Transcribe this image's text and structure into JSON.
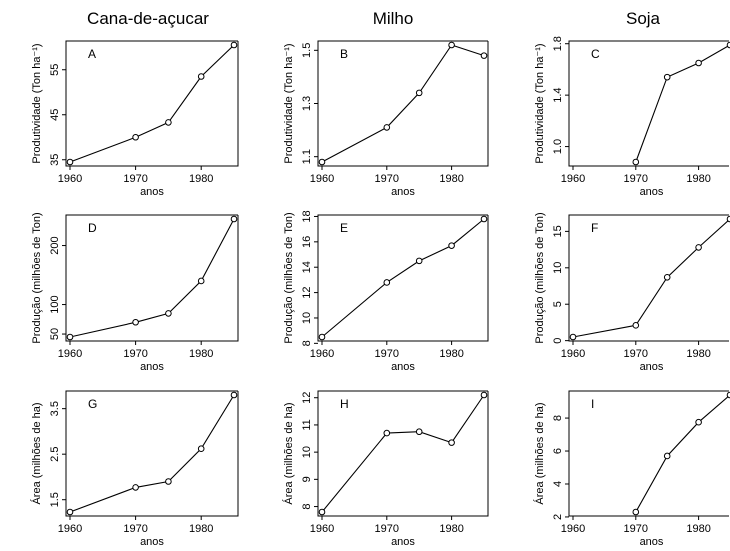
{
  "column_titles": [
    "Cana-de-açucar",
    "Milho",
    "Soja"
  ],
  "chart_data": [
    {
      "type": "line",
      "panel": "A",
      "title": "",
      "xlabel": "anos",
      "ylabel": "Produtividade (Ton ha⁻¹)",
      "x": [
        1960,
        1970,
        1975,
        1980,
        1985
      ],
      "y": [
        34.5,
        40,
        43.3,
        53.5,
        60.5
      ],
      "xlim": [
        1960,
        1985
      ],
      "ylim": [
        34.5,
        60.5
      ],
      "xticks": [
        "1960",
        "1970",
        "1980"
      ],
      "yticks": [
        "35",
        "45",
        "55"
      ]
    },
    {
      "type": "line",
      "panel": "B",
      "title": "",
      "xlabel": "anos",
      "ylabel": "Produtividade (Ton ha⁻¹)",
      "x": [
        1960,
        1970,
        1975,
        1980,
        1985
      ],
      "y": [
        1.08,
        1.21,
        1.34,
        1.52,
        1.48
      ],
      "xlim": [
        1960,
        1985
      ],
      "ylim": [
        1.08,
        1.52
      ],
      "xticks": [
        "1960",
        "1970",
        "1980"
      ],
      "yticks": [
        "1.1",
        "1.3",
        "1.5"
      ]
    },
    {
      "type": "line",
      "panel": "C",
      "title": "",
      "xlabel": "anos",
      "ylabel": "Produtividade (Ton ha⁻¹)",
      "x": [
        1970,
        1975,
        1980,
        1985
      ],
      "y": [
        0.88,
        1.54,
        1.65,
        1.79
      ],
      "xlim": [
        1960,
        1985
      ],
      "ylim": [
        0.88,
        1.79
      ],
      "xticks": [
        "1960",
        "1970",
        "1980"
      ],
      "yticks": [
        "1.0",
        "1.4",
        "1.8"
      ]
    },
    {
      "type": "line",
      "panel": "D",
      "title": "",
      "xlabel": "anos",
      "ylabel": "Produção (milhões de Ton)",
      "x": [
        1960,
        1970,
        1975,
        1980,
        1985
      ],
      "y": [
        45,
        70,
        85,
        140,
        245
      ],
      "xlim": [
        1960,
        1985
      ],
      "ylim": [
        45,
        245
      ],
      "xticks": [
        "1960",
        "1970",
        "1980"
      ],
      "yticks": [
        "50",
        "100",
        "200"
      ]
    },
    {
      "type": "line",
      "panel": "E",
      "title": "",
      "xlabel": "anos",
      "ylabel": "Produção (milhões de Ton)",
      "x": [
        1960,
        1970,
        1975,
        1980,
        1985
      ],
      "y": [
        8.5,
        12.8,
        14.5,
        15.7,
        17.8
      ],
      "xlim": [
        1960,
        1985
      ],
      "ylim": [
        8.5,
        17.8
      ],
      "xticks": [
        "1960",
        "1970",
        "1980"
      ],
      "yticks": [
        "8",
        "10",
        "12",
        "14",
        "16",
        "18"
      ]
    },
    {
      "type": "line",
      "panel": "F",
      "title": "",
      "xlabel": "anos",
      "ylabel": "Produção (milhões de Ton)",
      "x": [
        1960,
        1970,
        1975,
        1980,
        1985
      ],
      "y": [
        0.5,
        2.1,
        8.7,
        12.8,
        16.7
      ],
      "xlim": [
        1960,
        1985
      ],
      "ylim": [
        0.5,
        16.7
      ],
      "xticks": [
        "1960",
        "1970",
        "1980"
      ],
      "yticks": [
        "0",
        "5",
        "10",
        "15"
      ]
    },
    {
      "type": "line",
      "panel": "G",
      "title": "",
      "xlabel": "anos",
      "ylabel": "Área (milhões de ha)",
      "x": [
        1960,
        1970,
        1975,
        1980,
        1985
      ],
      "y": [
        1.23,
        1.77,
        1.9,
        2.62,
        3.8
      ],
      "xlim": [
        1960,
        1985
      ],
      "ylim": [
        1.23,
        3.8
      ],
      "xticks": [
        "1960",
        "1970",
        "1980"
      ],
      "yticks": [
        "1.5",
        "2.5",
        "3.5"
      ]
    },
    {
      "type": "line",
      "panel": "H",
      "title": "",
      "xlabel": "anos",
      "ylabel": "Área (milhões de ha)",
      "x": [
        1960,
        1970,
        1975,
        1980,
        1985
      ],
      "y": [
        7.8,
        10.7,
        10.75,
        10.35,
        12.1
      ],
      "xlim": [
        1960,
        1985
      ],
      "ylim": [
        7.8,
        12.1
      ],
      "xticks": [
        "1960",
        "1970",
        "1980"
      ],
      "yticks": [
        "8",
        "9",
        "10",
        "11",
        "12"
      ]
    },
    {
      "type": "line",
      "panel": "I",
      "title": "",
      "xlabel": "anos",
      "ylabel": "Área (milhões de ha)",
      "x": [
        1970,
        1975,
        1980,
        1985
      ],
      "y": [
        2.3,
        5.7,
        7.75,
        9.4
      ],
      "xlim": [
        1960,
        1985
      ],
      "ylim": [
        2.3,
        9.4
      ],
      "xticks": [
        "1960",
        "1970",
        "1980"
      ],
      "yticks": [
        "2",
        "4",
        "6",
        "8"
      ]
    }
  ]
}
